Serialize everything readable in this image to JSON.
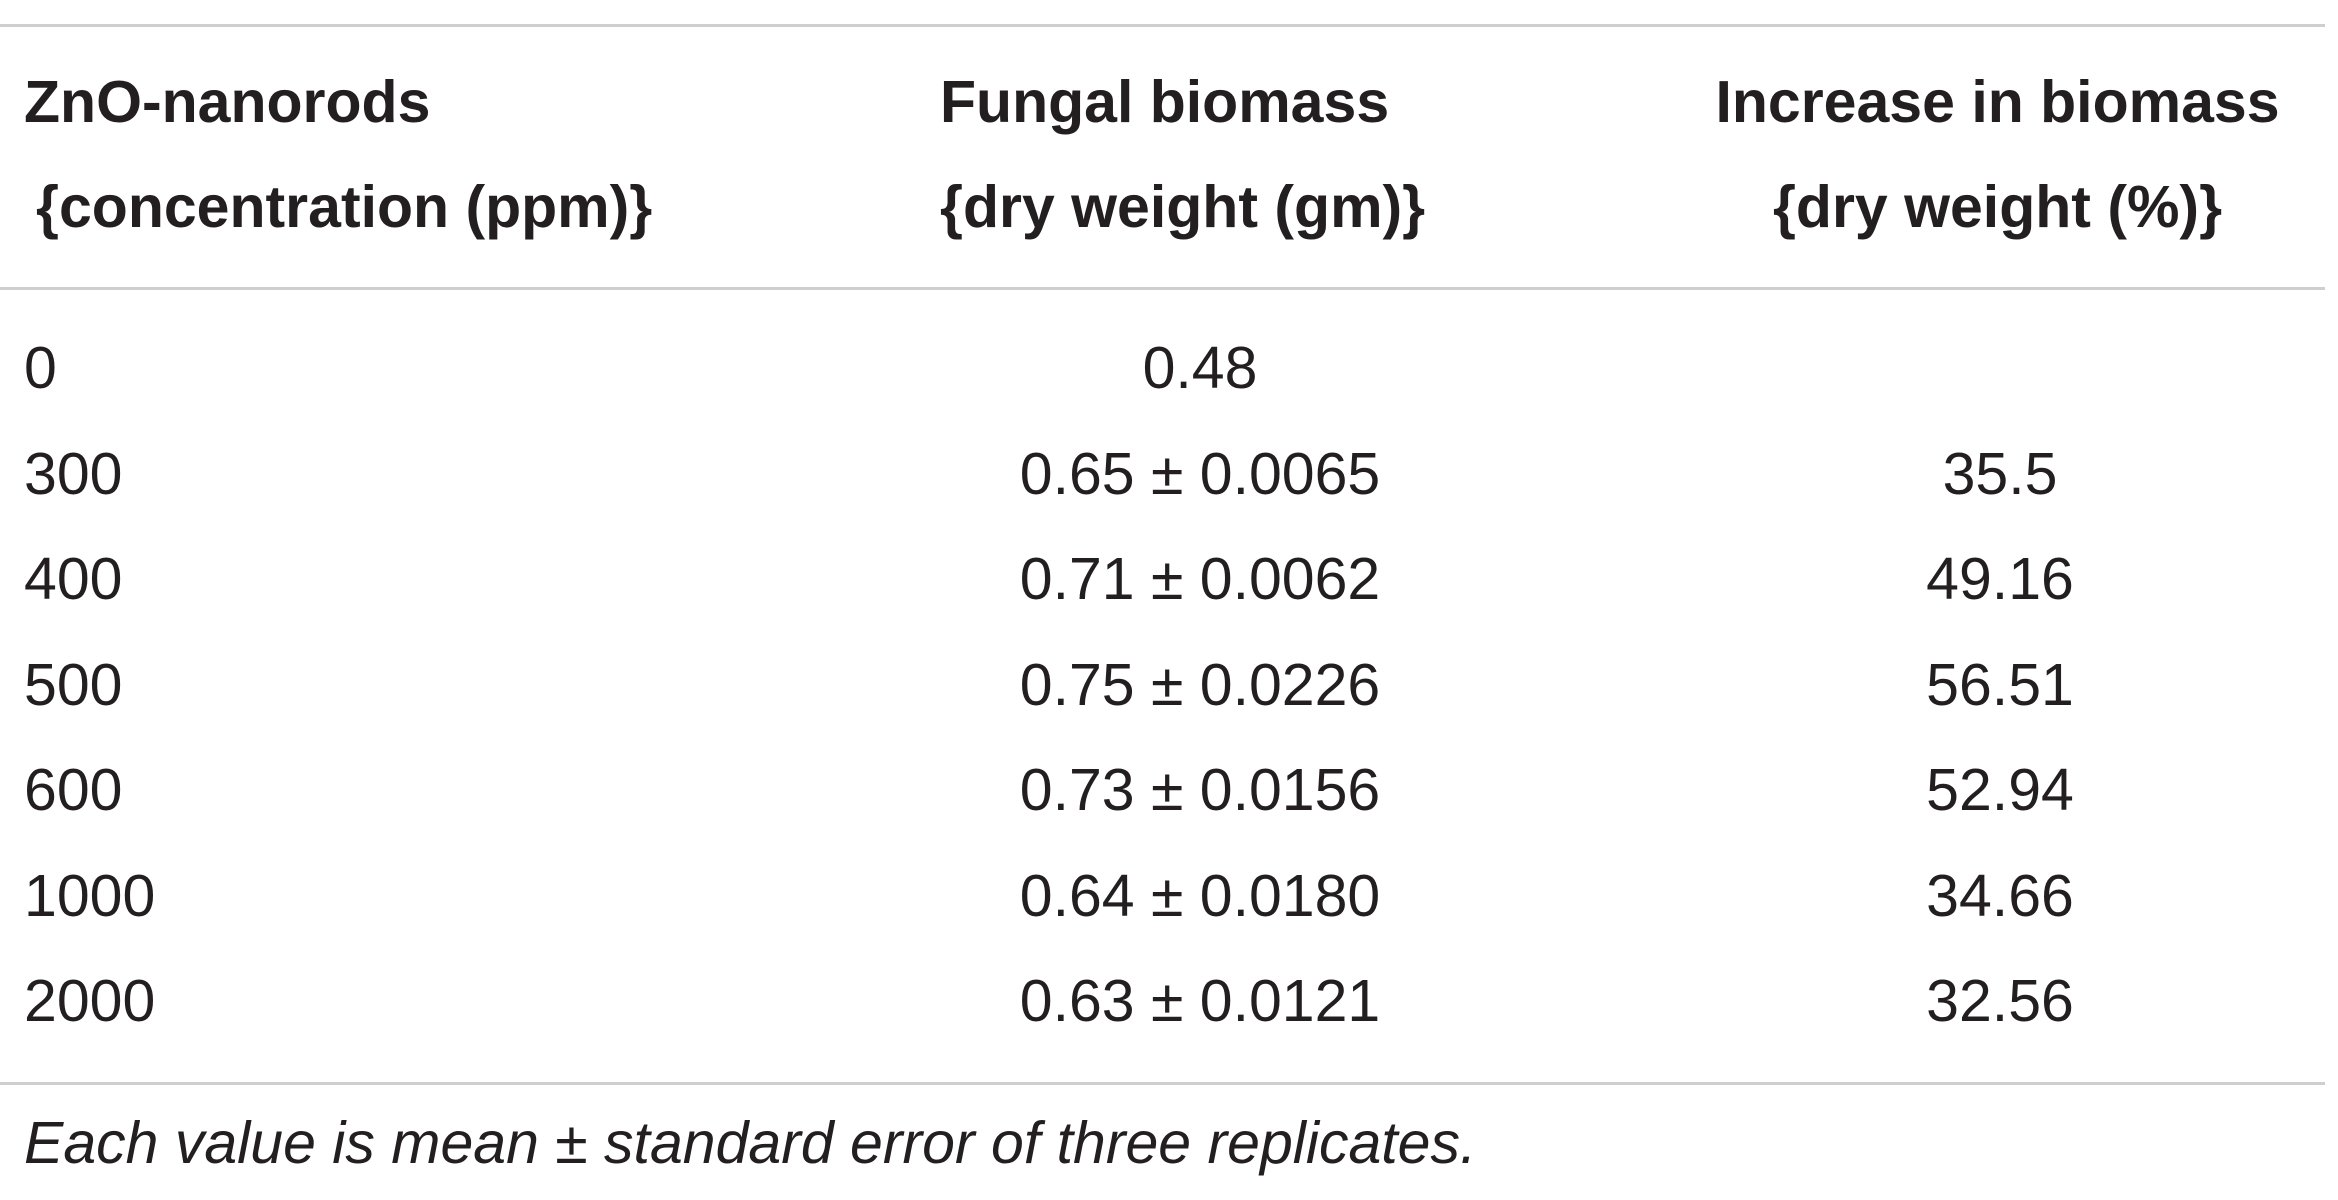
{
  "table": {
    "headers": [
      {
        "line1": "ZnO-nanorods",
        "line2": "{concentration (ppm)}"
      },
      {
        "line1": "Fungal biomass",
        "line2": "{dry weight (gm)}"
      },
      {
        "line1": "Increase in biomass",
        "line2": "{dry weight (%)}"
      }
    ],
    "rows": [
      {
        "concentration": "0",
        "biomass": "0.48",
        "increase": ""
      },
      {
        "concentration": "300",
        "biomass": "0.65 ± 0.0065",
        "increase": "35.5"
      },
      {
        "concentration": "400",
        "biomass": "0.71 ± 0.0062",
        "increase": "49.16"
      },
      {
        "concentration": "500",
        "biomass": "0.75 ± 0.0226",
        "increase": "56.51"
      },
      {
        "concentration": "600",
        "biomass": "0.73 ± 0.0156",
        "increase": "52.94"
      },
      {
        "concentration": "1000",
        "biomass": "0.64 ± 0.0180",
        "increase": "34.66"
      },
      {
        "concentration": "2000",
        "biomass": "0.63 ± 0.0121",
        "increase": "32.56"
      }
    ],
    "footnote": "Each value is mean ± standard error of three replicates."
  }
}
